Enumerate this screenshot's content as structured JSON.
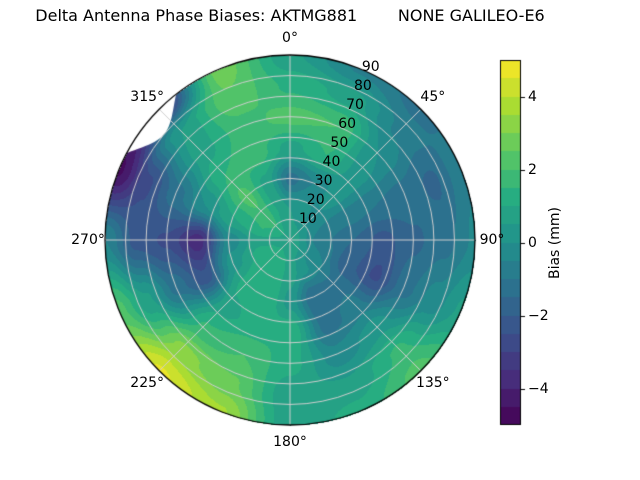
{
  "title": "Delta Antenna Phase Biases: AKTMG881        NONE GALILEO-E6",
  "colors": {
    "background": "#ffffff",
    "grid": "#cfcfcf",
    "axis_outline": "#000000",
    "text": "#000000",
    "masked": "#ffffff",
    "viridis_stops": [
      "#440154",
      "#472d7b",
      "#3b518b",
      "#2c718e",
      "#21908c",
      "#27ad81",
      "#5cc863",
      "#aadc32",
      "#fde725"
    ]
  },
  "chart_data": {
    "type": "heatmap",
    "subtype": "polar-filled-contour-skyplot",
    "title": "Delta Antenna Phase Biases: AKTMG881        NONE GALILEO-E6",
    "grid": true,
    "contour_level_step_mm": 0.5,
    "angular_axis": {
      "unit": "degrees",
      "zero_location": "top",
      "direction": "clockwise",
      "ticks": [
        {
          "deg": 0,
          "label": "0°"
        },
        {
          "deg": 45,
          "label": "45°"
        },
        {
          "deg": 90,
          "label": "90°"
        },
        {
          "deg": 135,
          "label": "135°"
        },
        {
          "deg": 180,
          "label": "180°"
        },
        {
          "deg": 225,
          "label": "225°"
        },
        {
          "deg": 270,
          "label": "270°"
        },
        {
          "deg": 315,
          "label": "315°"
        }
      ]
    },
    "radial_axis": {
      "range": [
        0,
        90
      ],
      "label_angle_deg": 22.5,
      "ticks": [
        {
          "value": 10,
          "label": "10"
        },
        {
          "value": 20,
          "label": "20"
        },
        {
          "value": 30,
          "label": "30"
        },
        {
          "value": 40,
          "label": "40"
        },
        {
          "value": 50,
          "label": "50"
        },
        {
          "value": 60,
          "label": "60"
        },
        {
          "value": 70,
          "label": "70"
        },
        {
          "value": 80,
          "label": "80"
        },
        {
          "value": 90,
          "label": "90"
        }
      ]
    },
    "colorbar": {
      "label": "Bias (mm)",
      "colormap": "viridis",
      "vmin": -5,
      "vmax": 5,
      "ticks": [
        {
          "value": 4,
          "label": "4"
        },
        {
          "value": 2,
          "label": "2"
        },
        {
          "value": 0,
          "label": "0"
        },
        {
          "value": -2,
          "label": "−2"
        },
        {
          "value": -4,
          "label": "−4"
        }
      ]
    },
    "field": {
      "azimuth_deg": [
        0,
        22.5,
        45,
        67.5,
        90,
        112.5,
        135,
        157.5,
        180,
        202.5,
        225,
        247.5,
        270,
        292.5,
        315,
        337.5
      ],
      "radius": [
        0,
        15,
        30,
        45,
        60,
        75,
        90
      ],
      "bias_mm": [
        [
          0.8,
          0.8,
          0.8,
          0.8,
          0.8,
          0.8,
          0.8,
          0.8,
          0.8,
          0.8,
          0.8,
          0.8,
          0.8,
          0.8,
          0.8,
          0.8
        ],
        [
          0.5,
          0.2,
          -0.2,
          -0.5,
          -0.8,
          -0.5,
          -0.2,
          0.2,
          0.8,
          1.2,
          1.5,
          1.2,
          0.8,
          1.5,
          1.8,
          1.0
        ],
        [
          -1.2,
          -0.5,
          0.3,
          -0.8,
          -1.5,
          -1.8,
          -1.2,
          -1.5,
          0.3,
          1.5,
          1.2,
          0.3,
          -0.3,
          1.0,
          2.2,
          0.8
        ],
        [
          0.8,
          1.5,
          0.3,
          -1.0,
          -2.2,
          -2.6,
          -0.8,
          -1.2,
          1.5,
          1.2,
          0.8,
          -2.4,
          -3.8,
          0.0,
          1.5,
          1.8
        ],
        [
          2.2,
          2.0,
          0.0,
          -1.2,
          -1.6,
          -1.2,
          0.3,
          -0.3,
          1.2,
          2.0,
          1.6,
          -1.2,
          -2.6,
          -1.2,
          0.8,
          1.8
        ],
        [
          1.4,
          0.8,
          -0.6,
          -1.6,
          -1.2,
          -0.3,
          1.6,
          0.6,
          0.6,
          2.6,
          3.2,
          0.6,
          -2.2,
          -2.6,
          0.5,
          2.4
        ],
        [
          0.6,
          -0.6,
          -1.2,
          -0.6,
          -0.4,
          0.6,
          2.2,
          1.2,
          0.6,
          3.6,
          4.6,
          2.2,
          -0.5,
          -4.6,
          -3.5,
          2.8
        ]
      ]
    },
    "masked_sector": {
      "az_start_deg": 298,
      "az_end_deg": 322,
      "max_depth_deg": 10
    }
  }
}
